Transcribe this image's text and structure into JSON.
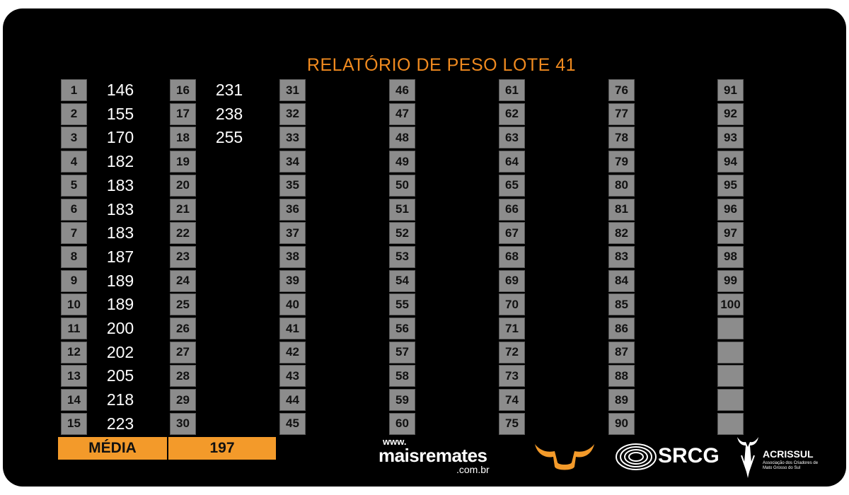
{
  "title": "RELATÓRIO DE PESO LOTE 41",
  "columns": [
    {
      "numbers": [
        "1",
        "2",
        "3",
        "4",
        "5",
        "6",
        "7",
        "8",
        "9",
        "10",
        "11",
        "12",
        "13",
        "14",
        "15"
      ],
      "weights": [
        "146",
        "155",
        "170",
        "182",
        "183",
        "183",
        "183",
        "187",
        "189",
        "189",
        "200",
        "202",
        "205",
        "218",
        "223"
      ]
    },
    {
      "numbers": [
        "16",
        "17",
        "18",
        "19",
        "20",
        "21",
        "22",
        "23",
        "24",
        "25",
        "26",
        "27",
        "28",
        "29",
        "30"
      ],
      "weights": [
        "231",
        "238",
        "255",
        "",
        "",
        "",
        "",
        "",
        "",
        "",
        "",
        "",
        "",
        "",
        ""
      ]
    },
    {
      "numbers": [
        "31",
        "32",
        "33",
        "34",
        "35",
        "36",
        "37",
        "38",
        "39",
        "40",
        "41",
        "42",
        "43",
        "44",
        "45"
      ],
      "weights": []
    },
    {
      "numbers": [
        "46",
        "47",
        "48",
        "49",
        "50",
        "51",
        "52",
        "53",
        "54",
        "55",
        "56",
        "57",
        "58",
        "59",
        "60"
      ],
      "weights": []
    },
    {
      "numbers": [
        "61",
        "62",
        "63",
        "64",
        "65",
        "66",
        "67",
        "68",
        "69",
        "70",
        "71",
        "72",
        "73",
        "74",
        "75"
      ],
      "weights": []
    },
    {
      "numbers": [
        "76",
        "77",
        "78",
        "79",
        "80",
        "81",
        "82",
        "83",
        "84",
        "85",
        "86",
        "87",
        "88",
        "89",
        "90"
      ],
      "weights": []
    },
    {
      "numbers": [
        "91",
        "92",
        "93",
        "94",
        "95",
        "96",
        "97",
        "98",
        "99",
        "100",
        "",
        "",
        "",
        "",
        ""
      ],
      "weights": []
    }
  ],
  "average": {
    "label": "MÉDIA",
    "value": "197"
  },
  "logos": {
    "maisremates": {
      "www": "www.",
      "brand": "maisremates",
      "domain": ".com.br"
    },
    "srcg": "SRCG",
    "acrissul": {
      "name": "ACRISSUL",
      "subtitle": "Associação dos Criadores de Mato Grosso do Sul"
    }
  },
  "colors": {
    "accent": "#f39a2a",
    "title": "#f08a1f",
    "cell": "#8c8c8c",
    "background": "#000000"
  }
}
